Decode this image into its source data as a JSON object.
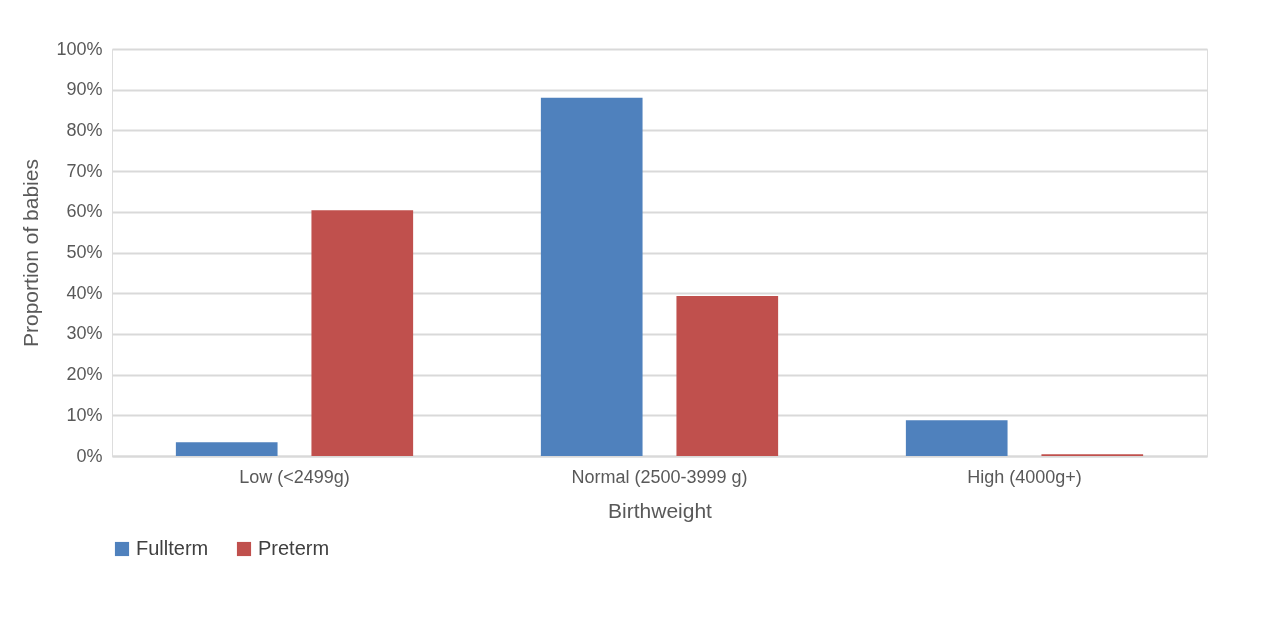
{
  "chart_data": {
    "type": "bar",
    "xlabel": "Birthweight",
    "ylabel": "Proportion of babies",
    "categories": [
      "Low (<2499g)",
      "Normal (2500-3999 g)",
      "High (4000g+)"
    ],
    "series": [
      {
        "name": "Fullterm",
        "color": "#4f81bd",
        "values": [
          3.4,
          88,
          8.8
        ]
      },
      {
        "name": "Preterm",
        "color": "#c0504d",
        "values": [
          60.4,
          39.3,
          0.4
        ]
      }
    ],
    "ylim": [
      0,
      100
    ],
    "yticks": [
      {
        "value": 0,
        "label": "0%"
      },
      {
        "value": 10,
        "label": "10%"
      },
      {
        "value": 20,
        "label": "20%"
      },
      {
        "value": 30,
        "label": "30%"
      },
      {
        "value": 40,
        "label": "40%"
      },
      {
        "value": 50,
        "label": "50%"
      },
      {
        "value": 60,
        "label": "60%"
      },
      {
        "value": 70,
        "label": "70%"
      },
      {
        "value": 80,
        "label": "80%"
      },
      {
        "value": 90,
        "label": "90%"
      },
      {
        "value": 100,
        "label": "100%"
      }
    ],
    "grid": "y",
    "legend": "bottom"
  }
}
